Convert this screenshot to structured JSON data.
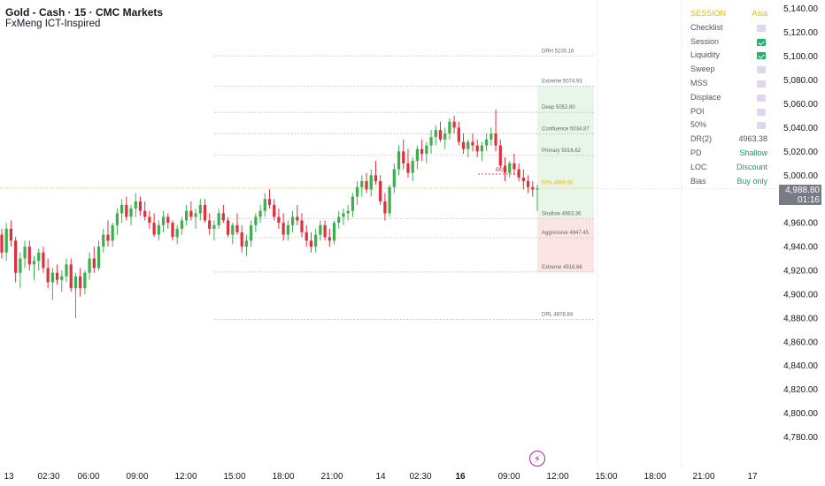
{
  "header": {
    "title": "Gold - Cash · 15 · CMC Markets",
    "indicator": "FxMeng ICT-Inspired"
  },
  "price_tag": {
    "price": "4,988.80",
    "countdown": "01:16"
  },
  "panel": {
    "session_label": "SESSION",
    "session_value": "Asia",
    "rows": [
      {
        "key": "Checklist",
        "check": false
      },
      {
        "key": "Session",
        "check": true
      },
      {
        "key": "Liquidity",
        "check": true
      },
      {
        "key": "Sweep",
        "check": false
      },
      {
        "key": "MSS",
        "check": false
      },
      {
        "key": "Displace",
        "check": false
      },
      {
        "key": "POI",
        "check": false
      },
      {
        "key": "50%",
        "check": false
      }
    ],
    "stats": [
      {
        "key": "DR(2)",
        "value": "4963.38"
      },
      {
        "key": "PD",
        "value": "Shallow"
      },
      {
        "key": "LOC",
        "value": "Discount"
      },
      {
        "key": "Bias",
        "value": "Buy only"
      }
    ]
  },
  "colors": {
    "up": "#26a69a",
    "up_candle": "#3fae4f",
    "down": "#e0303f",
    "premium_zone": "#e8f5e9",
    "discount_zone": "#fde4e4",
    "bias_green": "#22a05a",
    "session_gold": "#e5b800"
  },
  "chart_data": {
    "type": "candlestick",
    "symbol": "Gold - Cash",
    "timeframe": "15",
    "broker": "CMC Markets",
    "last_price": 4988.8,
    "ylim": [
      4770,
      5145
    ],
    "y_ticks": [
      "5,140.00",
      "5,120.00",
      "5,100.00",
      "5,080.00",
      "5,060.00",
      "5,040.00",
      "5,020.00",
      "5,000.00",
      "4,980.00",
      "4,960.00",
      "4,940.00",
      "4,920.00",
      "4,900.00",
      "4,880.00",
      "4,860.00",
      "4,840.00",
      "4,820.00",
      "4,800.00",
      "4,780.00"
    ],
    "x_ticks": [
      "13",
      "02:30",
      "06:00",
      "09:00",
      "12:00",
      "15:00",
      "18:00",
      "21:00",
      "14",
      "02:30",
      "16",
      "09:00",
      "12:00",
      "15:00",
      "18:00",
      "21:00",
      "17"
    ],
    "levels": [
      {
        "label": "DRH",
        "value": "5100.16",
        "price": 5100.16
      },
      {
        "label": "Extreme",
        "value": "5074.93",
        "price": 5074.93
      },
      {
        "label": "Deep",
        "value": "5052.80",
        "price": 5052.8
      },
      {
        "label": "Confluence",
        "value": "5034.87",
        "price": 5034.87
      },
      {
        "label": "Primary",
        "value": "5016.62",
        "price": 5016.62
      },
      {
        "label": "50%",
        "value": "4989.50",
        "price": 4989.5
      },
      {
        "label": "Shallow",
        "value": "4963.36",
        "price": 4963.36
      },
      {
        "label": "Aggressive",
        "value": "4947.45",
        "price": 4947.45
      },
      {
        "label": "Extreme",
        "value": "4918.66",
        "price": 4918.66
      },
      {
        "label": "DRL",
        "value": "4878.84",
        "price": 4878.84
      }
    ],
    "bos_label": "BOS",
    "bos_price": 5001,
    "candles": [
      [
        4950,
        4955,
        4930,
        4935
      ],
      [
        4935,
        4960,
        4928,
        4955
      ],
      [
        4955,
        4962,
        4940,
        4945
      ],
      [
        4945,
        4948,
        4910,
        4918
      ],
      [
        4918,
        4935,
        4905,
        4930
      ],
      [
        4930,
        4945,
        4922,
        4940
      ],
      [
        4940,
        4945,
        4920,
        4925
      ],
      [
        4925,
        4932,
        4912,
        4928
      ],
      [
        4928,
        4938,
        4920,
        4935
      ],
      [
        4935,
        4940,
        4918,
        4922
      ],
      [
        4922,
        4930,
        4905,
        4910
      ],
      [
        4910,
        4922,
        4895,
        4918
      ],
      [
        4918,
        4925,
        4908,
        4912
      ],
      [
        4912,
        4920,
        4902,
        4915
      ],
      [
        4915,
        4930,
        4910,
        4925
      ],
      [
        4925,
        4930,
        4902,
        4905
      ],
      [
        4905,
        4918,
        4880,
        4915
      ],
      [
        4915,
        4922,
        4898,
        4905
      ],
      [
        4905,
        4920,
        4900,
        4918
      ],
      [
        4918,
        4935,
        4912,
        4930
      ],
      [
        4930,
        4940,
        4918,
        4922
      ],
      [
        4922,
        4945,
        4920,
        4940
      ],
      [
        4940,
        4955,
        4935,
        4950
      ],
      [
        4950,
        4962,
        4940,
        4945
      ],
      [
        4945,
        4960,
        4940,
        4958
      ],
      [
        4958,
        4972,
        4950,
        4968
      ],
      [
        4968,
        4980,
        4960,
        4975
      ],
      [
        4975,
        4982,
        4962,
        4965
      ],
      [
        4965,
        4975,
        4958,
        4972
      ],
      [
        4972,
        4985,
        4965,
        4978
      ],
      [
        4978,
        4982,
        4966,
        4970
      ],
      [
        4970,
        4978,
        4962,
        4965
      ],
      [
        4965,
        4970,
        4955,
        4960
      ],
      [
        4960,
        4968,
        4948,
        4950
      ],
      [
        4950,
        4962,
        4945,
        4958
      ],
      [
        4958,
        4970,
        4952,
        4965
      ],
      [
        4965,
        4968,
        4955,
        4960
      ],
      [
        4960,
        4962,
        4945,
        4948
      ],
      [
        4948,
        4958,
        4942,
        4955
      ],
      [
        4955,
        4965,
        4950,
        4962
      ],
      [
        4962,
        4975,
        4958,
        4970
      ],
      [
        4970,
        4978,
        4962,
        4965
      ],
      [
        4965,
        4972,
        4955,
        4968
      ],
      [
        4968,
        4980,
        4962,
        4975
      ],
      [
        4975,
        4980,
        4960,
        4962
      ],
      [
        4962,
        4968,
        4950,
        4955
      ],
      [
        4955,
        4962,
        4945,
        4958
      ],
      [
        4958,
        4972,
        4955,
        4968
      ],
      [
        4968,
        4975,
        4960,
        4962
      ],
      [
        4962,
        4965,
        4948,
        4950
      ],
      [
        4950,
        4960,
        4942,
        4958
      ],
      [
        4958,
        4968,
        4950,
        4952
      ],
      [
        4952,
        4958,
        4935,
        4940
      ],
      [
        4940,
        4950,
        4932,
        4945
      ],
      [
        4945,
        4962,
        4940,
        4958
      ],
      [
        4958,
        4968,
        4952,
        4965
      ],
      [
        4965,
        4975,
        4960,
        4970
      ],
      [
        4970,
        4985,
        4965,
        4980
      ],
      [
        4980,
        4988,
        4972,
        4975
      ],
      [
        4975,
        4980,
        4962,
        4965
      ],
      [
        4965,
        4972,
        4955,
        4960
      ],
      [
        4960,
        4968,
        4945,
        4950
      ],
      [
        4950,
        4962,
        4945,
        4958
      ],
      [
        4958,
        4970,
        4952,
        4965
      ],
      [
        4965,
        4975,
        4958,
        4962
      ],
      [
        4962,
        4968,
        4948,
        4952
      ],
      [
        4952,
        4958,
        4940,
        4945
      ],
      [
        4945,
        4952,
        4935,
        4940
      ],
      [
        4940,
        4955,
        4935,
        4950
      ],
      [
        4950,
        4962,
        4945,
        4958
      ],
      [
        4958,
        4962,
        4945,
        4948
      ],
      [
        4948,
        4955,
        4940,
        4945
      ],
      [
        4945,
        4962,
        4942,
        4960
      ],
      [
        4960,
        4970,
        4955,
        4965
      ],
      [
        4965,
        4972,
        4958,
        4968
      ],
      [
        4968,
        4975,
        4962,
        4970
      ],
      [
        4970,
        4985,
        4965,
        4982
      ],
      [
        4982,
        4995,
        4975,
        4990
      ],
      [
        4990,
        5000,
        4982,
        4995
      ],
      [
        4995,
        5002,
        4985,
        4988
      ],
      [
        4988,
        5005,
        4982,
        5000
      ],
      [
        5000,
        5012,
        4992,
        4995
      ],
      [
        4995,
        5000,
        4975,
        4978
      ],
      [
        4978,
        4985,
        4962,
        4968
      ],
      [
        4968,
        4992,
        4965,
        4990
      ],
      [
        4990,
        5010,
        4985,
        5005
      ],
      [
        5005,
        5025,
        5000,
        5020
      ],
      [
        5020,
        5030,
        5005,
        5010
      ],
      [
        5010,
        5022,
        4998,
        5002
      ],
      [
        5002,
        5015,
        4995,
        5012
      ],
      [
        5012,
        5025,
        5005,
        5022
      ],
      [
        5022,
        5030,
        5012,
        5018
      ],
      [
        5018,
        5028,
        5010,
        5025
      ],
      [
        5025,
        5038,
        5018,
        5032
      ],
      [
        5032,
        5042,
        5025,
        5038
      ],
      [
        5038,
        5045,
        5028,
        5030
      ],
      [
        5030,
        5040,
        5022,
        5035
      ],
      [
        5035,
        5048,
        5030,
        5045
      ],
      [
        5045,
        5050,
        5035,
        5040
      ],
      [
        5040,
        5045,
        5025,
        5028
      ],
      [
        5028,
        5035,
        5018,
        5022
      ],
      [
        5022,
        5030,
        5015,
        5028
      ],
      [
        5028,
        5035,
        5020,
        5025
      ],
      [
        5025,
        5030,
        5015,
        5020
      ],
      [
        5020,
        5028,
        5012,
        5025
      ],
      [
        5025,
        5035,
        5020,
        5030
      ],
      [
        5030,
        5040,
        5025,
        5035
      ],
      [
        5035,
        5055,
        5020,
        5025
      ],
      [
        5025,
        5030,
        5005,
        5008
      ],
      [
        5008,
        5015,
        4995,
        5002
      ],
      [
        5002,
        5012,
        4998,
        5010
      ],
      [
        5010,
        5018,
        5000,
        5005
      ],
      [
        5005,
        5010,
        4995,
        4998
      ],
      [
        4998,
        5005,
        4988,
        4995
      ],
      [
        4995,
        5000,
        4985,
        4990
      ],
      [
        4990,
        4995,
        4982,
        4988
      ],
      [
        4988,
        4992,
        4970,
        4988.8
      ]
    ]
  }
}
